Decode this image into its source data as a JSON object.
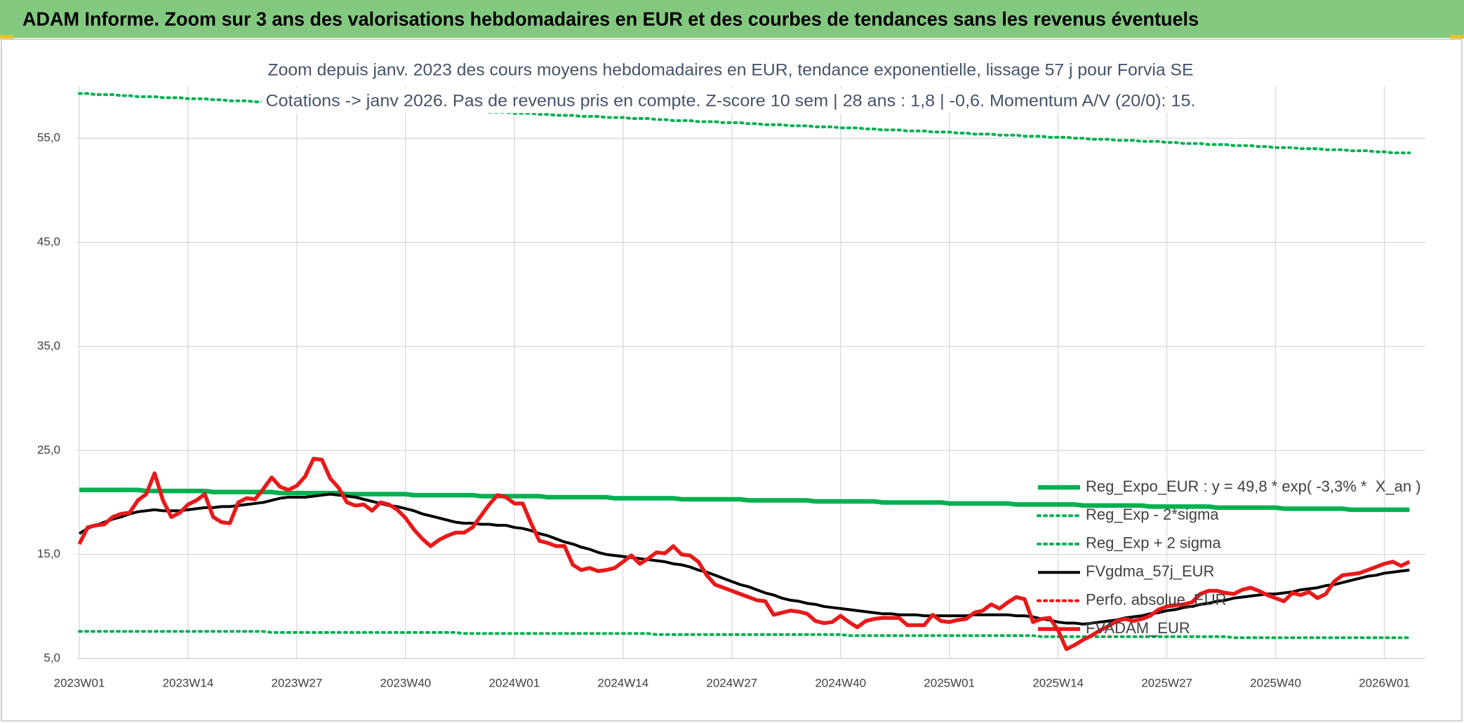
{
  "header": {
    "title": "ADAM Informe. Zoom sur 3 ans des valorisations hebdomadaires en EUR et des courbes de tendances sans les revenus éventuels"
  },
  "chart_data": {
    "type": "line",
    "title": "Zoom depuis janv. 2023 des cours moyens hebdomadaires en EUR, tendance exponentielle, lissage 57 j pour Forvia SE",
    "subtitle": "Cotations -> janv 2026. Pas de revenus pris en compte. Z-score 10 sem | 28 ans : 1,8 | -0,6. Momentum A/V (20/0): 15.",
    "categories": [
      "2023W01",
      null,
      null,
      null,
      null,
      null,
      null,
      null,
      null,
      null,
      null,
      null,
      null,
      "2023W14",
      null,
      null,
      null,
      null,
      null,
      null,
      null,
      null,
      null,
      null,
      null,
      null,
      "2023W27",
      null,
      null,
      null,
      null,
      null,
      null,
      null,
      null,
      null,
      null,
      null,
      null,
      "2023W40",
      null,
      null,
      null,
      null,
      null,
      null,
      null,
      null,
      null,
      null,
      null,
      null,
      "2024W01",
      null,
      null,
      null,
      null,
      null,
      null,
      null,
      null,
      null,
      null,
      null,
      null,
      "2024W14",
      null,
      null,
      null,
      null,
      null,
      null,
      null,
      null,
      null,
      null,
      null,
      null,
      "2024W27",
      null,
      null,
      null,
      null,
      null,
      null,
      null,
      null,
      null,
      null,
      null,
      null,
      "2024W40",
      null,
      null,
      null,
      null,
      null,
      null,
      null,
      null,
      null,
      null,
      null,
      null,
      "2025W01",
      null,
      null,
      null,
      null,
      null,
      null,
      null,
      null,
      null,
      null,
      null,
      null,
      "2025W14",
      null,
      null,
      null,
      null,
      null,
      null,
      null,
      null,
      null,
      null,
      null,
      null,
      "2025W27",
      null,
      null,
      null,
      null,
      null,
      null,
      null,
      null,
      null,
      null,
      null,
      null,
      "2025W40",
      null,
      null,
      null,
      null,
      null,
      null,
      null,
      null,
      null,
      null,
      null,
      null,
      "2026W01",
      null,
      null,
      null
    ],
    "ylim": [
      5,
      60
    ],
    "yticks": [
      {
        "value": 5,
        "label": "5,0"
      },
      {
        "value": 15,
        "label": "15,0"
      },
      {
        "value": 25,
        "label": "25,0"
      },
      {
        "value": 35,
        "label": "35,0"
      },
      {
        "value": 45,
        "label": "45,0"
      },
      {
        "value": 55,
        "label": "55,0"
      }
    ],
    "grid": true,
    "legend": "lower right",
    "series": [
      {
        "name": "Reg_Expo_EUR : y = 49,8 * exp( -3,3% *  X_an )",
        "color": "#00b050",
        "width": 6.5,
        "dash": "solid",
        "values": [
          21.2,
          21.2,
          21.2,
          21.2,
          21.2,
          21.2,
          21.2,
          21.2,
          21.1,
          21.1,
          21.1,
          21.1,
          21.1,
          21.1,
          21.1,
          21.1,
          21.0,
          21.0,
          21.0,
          21.0,
          21.0,
          21.0,
          21.0,
          21.0,
          20.9,
          20.9,
          20.9,
          20.9,
          20.9,
          20.9,
          20.9,
          20.9,
          20.8,
          20.8,
          20.8,
          20.8,
          20.8,
          20.8,
          20.8,
          20.8,
          20.7,
          20.7,
          20.7,
          20.7,
          20.7,
          20.7,
          20.7,
          20.7,
          20.6,
          20.6,
          20.6,
          20.6,
          20.6,
          20.6,
          20.6,
          20.6,
          20.5,
          20.5,
          20.5,
          20.5,
          20.5,
          20.5,
          20.5,
          20.5,
          20.4,
          20.4,
          20.4,
          20.4,
          20.4,
          20.4,
          20.4,
          20.4,
          20.3,
          20.3,
          20.3,
          20.3,
          20.3,
          20.3,
          20.3,
          20.3,
          20.2,
          20.2,
          20.2,
          20.2,
          20.2,
          20.2,
          20.2,
          20.2,
          20.1,
          20.1,
          20.1,
          20.1,
          20.1,
          20.1,
          20.1,
          20.1,
          20.0,
          20.0,
          20.0,
          20.0,
          20.0,
          20.0,
          20.0,
          20.0,
          19.9,
          19.9,
          19.9,
          19.9,
          19.9,
          19.9,
          19.9,
          19.9,
          19.8,
          19.8,
          19.8,
          19.8,
          19.8,
          19.8,
          19.8,
          19.8,
          19.7,
          19.7,
          19.7,
          19.7,
          19.7,
          19.7,
          19.7,
          19.7,
          19.6,
          19.6,
          19.6,
          19.6,
          19.6,
          19.6,
          19.6,
          19.6,
          19.5,
          19.5,
          19.5,
          19.5,
          19.5,
          19.5,
          19.5,
          19.5,
          19.4,
          19.4,
          19.4,
          19.4,
          19.4,
          19.4,
          19.4,
          19.4,
          19.3,
          19.3,
          19.3,
          19.3,
          19.3,
          19.3,
          19.3,
          19.3
        ]
      },
      {
        "name": "Reg_Exp - 2*sigma",
        "color": "#00b050",
        "width": 4,
        "dash": "dotted",
        "values": [
          7.6,
          7.6,
          7.6,
          7.6,
          7.6,
          7.6,
          7.6,
          7.6,
          7.6,
          7.6,
          7.6,
          7.6,
          7.6,
          7.6,
          7.6,
          7.6,
          7.6,
          7.6,
          7.6,
          7.6,
          7.6,
          7.6,
          7.6,
          7.5,
          7.5,
          7.5,
          7.5,
          7.5,
          7.5,
          7.5,
          7.5,
          7.5,
          7.5,
          7.5,
          7.5,
          7.5,
          7.5,
          7.5,
          7.5,
          7.5,
          7.5,
          7.5,
          7.5,
          7.5,
          7.5,
          7.5,
          7.4,
          7.4,
          7.4,
          7.4,
          7.4,
          7.4,
          7.4,
          7.4,
          7.4,
          7.4,
          7.4,
          7.4,
          7.4,
          7.4,
          7.4,
          7.4,
          7.4,
          7.4,
          7.4,
          7.4,
          7.4,
          7.4,
          7.4,
          7.3,
          7.3,
          7.3,
          7.3,
          7.3,
          7.3,
          7.3,
          7.3,
          7.3,
          7.3,
          7.3,
          7.3,
          7.3,
          7.3,
          7.3,
          7.3,
          7.3,
          7.3,
          7.3,
          7.3,
          7.3,
          7.3,
          7.3,
          7.2,
          7.2,
          7.2,
          7.2,
          7.2,
          7.2,
          7.2,
          7.2,
          7.2,
          7.2,
          7.2,
          7.2,
          7.2,
          7.2,
          7.2,
          7.2,
          7.2,
          7.2,
          7.2,
          7.2,
          7.2,
          7.2,
          7.2,
          7.1,
          7.1,
          7.1,
          7.1,
          7.1,
          7.1,
          7.1,
          7.1,
          7.1,
          7.1,
          7.1,
          7.1,
          7.1,
          7.1,
          7.1,
          7.1,
          7.1,
          7.1,
          7.1,
          7.1,
          7.1,
          7.1,
          7.1,
          7.0,
          7.0,
          7.0,
          7.0,
          7.0,
          7.0,
          7.0,
          7.0,
          7.0,
          7.0,
          7.0,
          7.0,
          7.0,
          7.0,
          7.0,
          7.0,
          7.0,
          7.0,
          7.0,
          7.0,
          7.0,
          7.0
        ]
      },
      {
        "name": "Reg_Exp + 2 sigma",
        "color": "#00b050",
        "width": 4,
        "dash": "dotted",
        "values": [
          59.3,
          59.3,
          59.2,
          59.2,
          59.2,
          59.1,
          59.1,
          59.0,
          59.0,
          59.0,
          58.9,
          58.9,
          58.9,
          58.8,
          58.8,
          58.8,
          58.7,
          58.7,
          58.6,
          58.6,
          58.6,
          58.5,
          58.5,
          58.5,
          58.4,
          58.4,
          58.4,
          58.3,
          58.3,
          58.3,
          58.2,
          58.2,
          58.1,
          58.1,
          58.1,
          58.0,
          58.0,
          58.0,
          57.9,
          57.9,
          57.9,
          57.8,
          57.8,
          57.8,
          57.7,
          57.7,
          57.6,
          57.6,
          57.6,
          57.5,
          57.5,
          57.5,
          57.4,
          57.4,
          57.4,
          57.3,
          57.3,
          57.2,
          57.2,
          57.2,
          57.1,
          57.1,
          57.1,
          57.0,
          57.0,
          57.0,
          56.9,
          56.9,
          56.9,
          56.8,
          56.8,
          56.7,
          56.7,
          56.7,
          56.6,
          56.6,
          56.6,
          56.5,
          56.5,
          56.5,
          56.4,
          56.4,
          56.3,
          56.3,
          56.3,
          56.2,
          56.2,
          56.2,
          56.1,
          56.1,
          56.1,
          56.0,
          56.0,
          56.0,
          55.9,
          55.9,
          55.8,
          55.8,
          55.8,
          55.7,
          55.7,
          55.7,
          55.6,
          55.6,
          55.6,
          55.5,
          55.5,
          55.4,
          55.4,
          55.4,
          55.3,
          55.3,
          55.3,
          55.2,
          55.2,
          55.2,
          55.1,
          55.1,
          55.1,
          55.0,
          55.0,
          54.9,
          54.9,
          54.9,
          54.8,
          54.8,
          54.8,
          54.7,
          54.7,
          54.7,
          54.6,
          54.6,
          54.5,
          54.5,
          54.5,
          54.4,
          54.4,
          54.4,
          54.3,
          54.3,
          54.3,
          54.2,
          54.2,
          54.1,
          54.1,
          54.1,
          54.0,
          54.0,
          54.0,
          53.9,
          53.9,
          53.9,
          53.8,
          53.8,
          53.8,
          53.7,
          53.7,
          53.6,
          53.6,
          53.6
        ]
      },
      {
        "name": "FVgdma_57j_EUR",
        "color": "#000000",
        "width": 4,
        "dash": "solid",
        "values": [
          17.0,
          17.5,
          17.8,
          18.1,
          18.4,
          18.6,
          18.9,
          19.1,
          19.2,
          19.3,
          19.2,
          19.2,
          19.2,
          19.3,
          19.4,
          19.5,
          19.5,
          19.6,
          19.6,
          19.7,
          19.8,
          19.9,
          20.0,
          20.2,
          20.4,
          20.5,
          20.5,
          20.5,
          20.6,
          20.7,
          20.8,
          20.7,
          20.6,
          20.5,
          20.3,
          20.1,
          19.9,
          19.7,
          19.6,
          19.4,
          19.2,
          18.9,
          18.7,
          18.5,
          18.3,
          18.1,
          18.0,
          18.0,
          17.9,
          17.9,
          17.8,
          17.8,
          17.6,
          17.5,
          17.3,
          17.0,
          16.8,
          16.5,
          16.2,
          16.0,
          15.7,
          15.5,
          15.2,
          15.0,
          14.9,
          14.8,
          14.7,
          14.6,
          14.5,
          14.4,
          14.3,
          14.1,
          14.0,
          13.8,
          13.5,
          13.3,
          13.0,
          12.7,
          12.4,
          12.1,
          11.9,
          11.6,
          11.3,
          11.1,
          10.8,
          10.6,
          10.5,
          10.3,
          10.2,
          10.0,
          9.9,
          9.8,
          9.7,
          9.6,
          9.5,
          9.4,
          9.3,
          9.3,
          9.2,
          9.2,
          9.2,
          9.1,
          9.1,
          9.1,
          9.1,
          9.1,
          9.1,
          9.2,
          9.2,
          9.2,
          9.2,
          9.2,
          9.1,
          9.1,
          9.0,
          8.8,
          8.7,
          8.5,
          8.4,
          8.4,
          8.3,
          8.4,
          8.5,
          8.6,
          8.7,
          8.9,
          9.0,
          9.1,
          9.3,
          9.4,
          9.6,
          9.7,
          9.9,
          10.0,
          10.2,
          10.3,
          10.5,
          10.6,
          10.8,
          10.9,
          11.0,
          11.1,
          11.2,
          11.2,
          11.3,
          11.4,
          11.6,
          11.7,
          11.8,
          12.0,
          12.1,
          12.3,
          12.5,
          12.7,
          12.9,
          13.0,
          13.2,
          13.3,
          13.4,
          13.5
        ]
      },
      {
        "name": "Perfo. absolue_EUR",
        "color": "#ff0000",
        "width": 4,
        "dash": "dotted",
        "values": [
          null,
          null,
          null,
          null,
          null,
          null,
          null,
          null,
          null,
          null,
          null,
          null,
          null,
          null,
          null,
          null,
          null,
          null,
          null,
          null,
          null,
          null,
          null,
          null,
          null,
          null,
          null,
          null,
          null,
          null,
          null,
          null,
          null,
          null,
          null,
          null,
          null,
          null,
          null,
          null,
          null,
          null,
          null,
          null,
          null,
          null,
          null,
          null,
          null,
          null,
          null,
          null,
          null,
          null,
          null,
          null,
          null,
          null,
          null,
          null,
          null,
          null,
          null,
          null,
          null,
          null,
          null,
          null,
          null,
          null,
          null,
          null,
          null,
          null,
          null,
          null,
          null,
          null,
          null,
          null,
          null,
          null,
          null,
          null,
          null,
          null,
          null,
          null,
          null,
          null,
          null,
          null,
          null,
          null,
          null,
          null,
          null,
          null,
          null,
          null,
          null,
          null,
          null,
          null,
          null,
          null,
          null,
          null,
          null,
          null,
          null,
          null,
          null,
          null,
          null,
          null,
          null,
          null,
          null,
          null,
          null,
          null,
          null,
          null,
          null,
          null,
          null,
          null,
          null,
          null,
          null,
          null,
          null,
          null,
          null,
          null,
          null,
          null,
          null,
          null,
          null,
          null,
          null,
          null,
          null,
          null,
          null,
          null,
          null,
          null,
          null,
          null,
          null,
          null,
          null,
          null,
          null,
          null,
          null,
          null
        ]
      },
      {
        "name": "FVADAM_EUR",
        "color": "#e8191a",
        "width": 5.5,
        "dash": "solid",
        "values": [
          16.0,
          17.6,
          17.8,
          17.9,
          18.6,
          18.9,
          19.0,
          20.2,
          20.8,
          22.8,
          20.2,
          18.6,
          19.0,
          19.8,
          20.2,
          20.8,
          18.6,
          18.1,
          18.0,
          20.0,
          20.4,
          20.3,
          21.3,
          22.4,
          21.5,
          21.2,
          21.6,
          22.5,
          24.2,
          24.1,
          22.3,
          21.4,
          20.0,
          19.7,
          19.8,
          19.2,
          20.0,
          19.8,
          19.3,
          18.5,
          17.4,
          16.5,
          15.8,
          16.4,
          16.8,
          17.1,
          17.1,
          17.6,
          18.7,
          19.8,
          20.7,
          20.5,
          19.9,
          19.9,
          18.0,
          16.3,
          16.1,
          15.8,
          15.8,
          14.0,
          13.5,
          13.7,
          13.4,
          13.5,
          13.7,
          14.3,
          14.9,
          14.1,
          14.6,
          15.2,
          15.1,
          15.8,
          15.0,
          14.9,
          14.3,
          13.0,
          12.1,
          11.8,
          11.5,
          11.2,
          10.9,
          10.6,
          10.5,
          9.2,
          9.4,
          9.6,
          9.5,
          9.3,
          8.6,
          8.4,
          8.5,
          9.1,
          8.5,
          8.0,
          8.6,
          8.8,
          8.9,
          8.9,
          8.9,
          8.2,
          8.2,
          8.2,
          9.2,
          8.6,
          8.5,
          8.7,
          8.8,
          9.4,
          9.6,
          10.2,
          9.8,
          10.4,
          10.9,
          10.7,
          8.5,
          8.8,
          8.9,
          7.7,
          5.9,
          6.3,
          6.8,
          7.2,
          7.7,
          8.1,
          8.6,
          8.8,
          8.6,
          8.8,
          9.1,
          9.7,
          10.0,
          10.1,
          10.2,
          10.4,
          11.2,
          11.5,
          11.5,
          11.3,
          11.2,
          11.6,
          11.8,
          11.5,
          11.1,
          10.8,
          10.5,
          11.3,
          11.1,
          11.4,
          10.8,
          11.2,
          12.4,
          13.0,
          13.1,
          13.2,
          13.5,
          13.8,
          14.1,
          14.3,
          13.9,
          14.3
        ]
      }
    ]
  }
}
